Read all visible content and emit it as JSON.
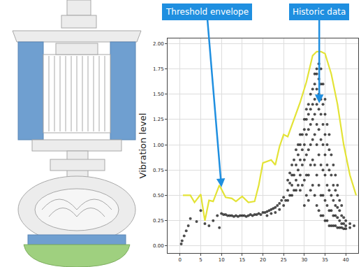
{
  "chart_data": {
    "type": "scatter",
    "y_label": "Vibration level",
    "xlim": [
      -3,
      43
    ],
    "ylim": [
      -0.07,
      2.05
    ],
    "xticks": [
      0,
      5,
      10,
      15,
      20,
      25,
      30,
      35,
      40
    ],
    "yticks": [
      {
        "value": 0,
        "label": "0.00"
      },
      {
        "value": 0.25,
        "label": "0.25"
      },
      {
        "value": 0.5,
        "label": "0.50"
      },
      {
        "value": 0.75,
        "label": "0.75"
      },
      {
        "value": 1,
        "label": "1.00"
      },
      {
        "value": 1.25,
        "label": "1.25"
      },
      {
        "value": 1.5,
        "label": "1.50"
      },
      {
        "value": 1.75,
        "label": "1.75"
      },
      {
        "value": 2,
        "label": "2.00"
      }
    ],
    "grid": true,
    "series": [
      {
        "type": "line",
        "color": "#e3e336",
        "line_style": "solid",
        "x": [
          0.7,
          2.5,
          3.5,
          5,
          6,
          7,
          8,
          9.5,
          11,
          12.5,
          13.5,
          15,
          16.5,
          18,
          19,
          20,
          22,
          23,
          24,
          25,
          26,
          27.5,
          29,
          30.5,
          32,
          33,
          34,
          35,
          36.5,
          38,
          39.5,
          41,
          42.5
        ],
        "values": [
          0.5,
          0.5,
          0.43,
          0.51,
          0.25,
          0.45,
          0.44,
          0.6,
          0.48,
          0.47,
          0.44,
          0.49,
          0.43,
          0.44,
          0.6,
          0.82,
          0.85,
          0.8,
          0.98,
          1.1,
          1.08,
          1.25,
          1.42,
          1.62,
          1.88,
          1.92,
          1.92,
          1.9,
          1.7,
          1.4,
          1.0,
          0.7,
          0.5
        ]
      },
      {
        "type": "scatter",
        "color": "#111111",
        "marker": "circle",
        "x": [
          0.3,
          0.5,
          1,
          1.5,
          2,
          2.5,
          4,
          5,
          6,
          7,
          8,
          9,
          9.5,
          10,
          10.5,
          11,
          11.5,
          12,
          12.5,
          13,
          13.5,
          14,
          14.5,
          15,
          15.5,
          16,
          16.5,
          17,
          17.5,
          18,
          18.5,
          19,
          19.5,
          20,
          20.5,
          21,
          21.5,
          22,
          22.5,
          23,
          23.5,
          24,
          24.5,
          25,
          21,
          22,
          23,
          24,
          25,
          25.5,
          26,
          26,
          26,
          26.5,
          26.5,
          26.5,
          27,
          27,
          27,
          27,
          27.5,
          27.5,
          27.5,
          28,
          28,
          28,
          28,
          28.5,
          28.5,
          28.5,
          28.5,
          29,
          29,
          29,
          29,
          29,
          29.5,
          29.5,
          29.5,
          29.5,
          30,
          30,
          30,
          30,
          30,
          30,
          30.5,
          30.5,
          30.5,
          30.5,
          30.5,
          30.5,
          31,
          31,
          31,
          31,
          31,
          31,
          31.5,
          31.5,
          31.5,
          31.5,
          31.5,
          31.5,
          32,
          32,
          32,
          32,
          32,
          32,
          32.5,
          32.5,
          32.5,
          32.5,
          32.5,
          32.5,
          32.5,
          33,
          33,
          33,
          33,
          33,
          33,
          33,
          33,
          33.5,
          33.5,
          33.5,
          33.5,
          33.5,
          33.5,
          33.5,
          33.5,
          34,
          34,
          34,
          34,
          34,
          34,
          34,
          34,
          34.5,
          34.5,
          34.5,
          34.5,
          34.5,
          34.5,
          34.5,
          35,
          35,
          35,
          35,
          35,
          35,
          35,
          35.5,
          35.5,
          35.5,
          35.5,
          35.5,
          35.5,
          36,
          36,
          36,
          36,
          36,
          36,
          36.5,
          36.5,
          36.5,
          36.5,
          36.5,
          37,
          37,
          37,
          37,
          37,
          37.5,
          37.5,
          37.5,
          37.5,
          37.5,
          38,
          38,
          38,
          38,
          38,
          38.5,
          38.5,
          38.5,
          38.5,
          39,
          39,
          39,
          39,
          39.5,
          39.5,
          39.5,
          40,
          40,
          40,
          41,
          41,
          42
        ],
        "values": [
          0.02,
          0.05,
          0.1,
          0.15,
          0.2,
          0.27,
          0.24,
          0.35,
          0.22,
          0.2,
          0.25,
          0.3,
          0.18,
          0.32,
          0.31,
          0.31,
          0.3,
          0.3,
          0.3,
          0.29,
          0.3,
          0.29,
          0.3,
          0.3,
          0.3,
          0.29,
          0.3,
          0.31,
          0.3,
          0.31,
          0.31,
          0.32,
          0.31,
          0.33,
          0.33,
          0.34,
          0.35,
          0.36,
          0.37,
          0.38,
          0.4,
          0.42,
          0.45,
          0.48,
          0.3,
          0.32,
          0.33,
          0.36,
          0.4,
          0.45,
          0.45,
          0.55,
          0.65,
          0.5,
          0.62,
          0.72,
          0.5,
          0.6,
          0.7,
          0.8,
          0.55,
          0.7,
          0.85,
          0.55,
          0.65,
          0.8,
          0.95,
          0.6,
          0.75,
          0.9,
          1.0,
          0.55,
          0.7,
          0.85,
          1.0,
          1.1,
          0.6,
          0.8,
          0.95,
          1.1,
          0.4,
          0.65,
          0.85,
          1.0,
          1.15,
          1.25,
          0.5,
          0.7,
          0.9,
          1.1,
          1.25,
          1.35,
          0.45,
          0.7,
          0.95,
          1.15,
          1.3,
          1.4,
          0.55,
          0.8,
          1.0,
          1.2,
          1.35,
          1.5,
          0.6,
          0.85,
          1.05,
          1.25,
          1.4,
          1.55,
          0.5,
          0.8,
          1.1,
          1.3,
          1.45,
          1.6,
          1.7,
          0.4,
          0.7,
          1.0,
          1.2,
          1.4,
          1.55,
          1.7,
          1.75,
          0.35,
          0.6,
          0.9,
          1.15,
          1.35,
          1.5,
          1.65,
          1.8,
          0.3,
          0.5,
          0.8,
          1.05,
          1.3,
          1.45,
          1.6,
          1.75,
          0.3,
          0.5,
          0.75,
          1.0,
          1.2,
          1.4,
          1.6,
          0.25,
          0.45,
          0.7,
          0.9,
          1.1,
          1.3,
          1.45,
          0.25,
          0.4,
          0.6,
          0.8,
          1.0,
          1.2,
          0.2,
          0.35,
          0.55,
          0.75,
          0.95,
          1.1,
          0.2,
          0.35,
          0.5,
          0.7,
          0.9,
          0.2,
          0.3,
          0.45,
          0.6,
          0.8,
          0.2,
          0.3,
          0.4,
          0.55,
          0.7,
          0.18,
          0.28,
          0.38,
          0.5,
          0.6,
          0.18,
          0.25,
          0.35,
          0.45,
          0.18,
          0.22,
          0.3,
          0.4,
          0.17,
          0.22,
          0.28,
          0.17,
          0.2,
          0.25,
          0.18,
          0.22,
          0.2
        ]
      }
    ],
    "annotations": [
      {
        "text": "Threshold envelope",
        "x": 10,
        "y": 0.58
      },
      {
        "text": "Historic data",
        "x": 33.6,
        "y": 1.41
      }
    ]
  }
}
